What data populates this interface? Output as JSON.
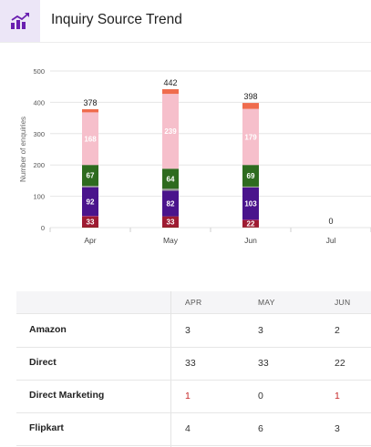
{
  "header": {
    "title": "Inquiry Source Trend",
    "icon": "trend-chart-icon",
    "accent": "#7b2fbf"
  },
  "chart_data": {
    "type": "bar",
    "stacked": true,
    "ylabel": "Number of enquiries",
    "ylim": [
      0,
      500
    ],
    "yticks": [
      0,
      100,
      200,
      300,
      400,
      500
    ],
    "grid": true,
    "categories": [
      "Apr",
      "May",
      "Jun",
      "Jul"
    ],
    "totals": [
      378,
      442,
      398,
      0
    ],
    "series": [
      {
        "color": "#8b1a1a",
        "values": [
          3,
          3,
          2,
          0
        ],
        "labels": [
          "",
          "",
          "",
          ""
        ]
      },
      {
        "color": "#9e1b32",
        "values": [
          33,
          33,
          22,
          0
        ],
        "labels": [
          "33",
          "33",
          "22",
          ""
        ]
      },
      {
        "color": "#c2185b",
        "values": [
          1,
          0,
          1,
          0
        ],
        "labels": [
          "",
          "",
          "",
          ""
        ]
      },
      {
        "color": "#4a148c",
        "values": [
          92,
          82,
          103,
          0
        ],
        "labels": [
          "92",
          "82",
          "103",
          ""
        ]
      },
      {
        "color": "#9e9e9e",
        "values": [
          4,
          6,
          3,
          0
        ],
        "labels": [
          "",
          "",
          "",
          ""
        ]
      },
      {
        "color": "#2e6b1f",
        "values": [
          67,
          64,
          69,
          0
        ],
        "labels": [
          "67",
          "64",
          "69",
          ""
        ]
      },
      {
        "color": "#f6bfcb",
        "values": [
          168,
          239,
          179,
          0
        ],
        "labels": [
          "168",
          "239",
          "179",
          ""
        ]
      },
      {
        "color": "#ef6c4d",
        "values": [
          10,
          15,
          19,
          0
        ],
        "labels": [
          "",
          "",
          "",
          ""
        ]
      }
    ]
  },
  "table": {
    "columns": [
      "APR",
      "MAY",
      "JUN"
    ],
    "rows": [
      {
        "name": "Amazon",
        "values": [
          "3",
          "3",
          "2"
        ]
      },
      {
        "name": "Direct",
        "values": [
          "33",
          "33",
          "22"
        ]
      },
      {
        "name": "Direct Marketing",
        "values": [
          "1",
          "0",
          "1"
        ]
      },
      {
        "name": "Flipkart",
        "values": [
          "4",
          "6",
          "3"
        ]
      }
    ],
    "value_color": "#333333",
    "highlight_color": "#c62828"
  }
}
